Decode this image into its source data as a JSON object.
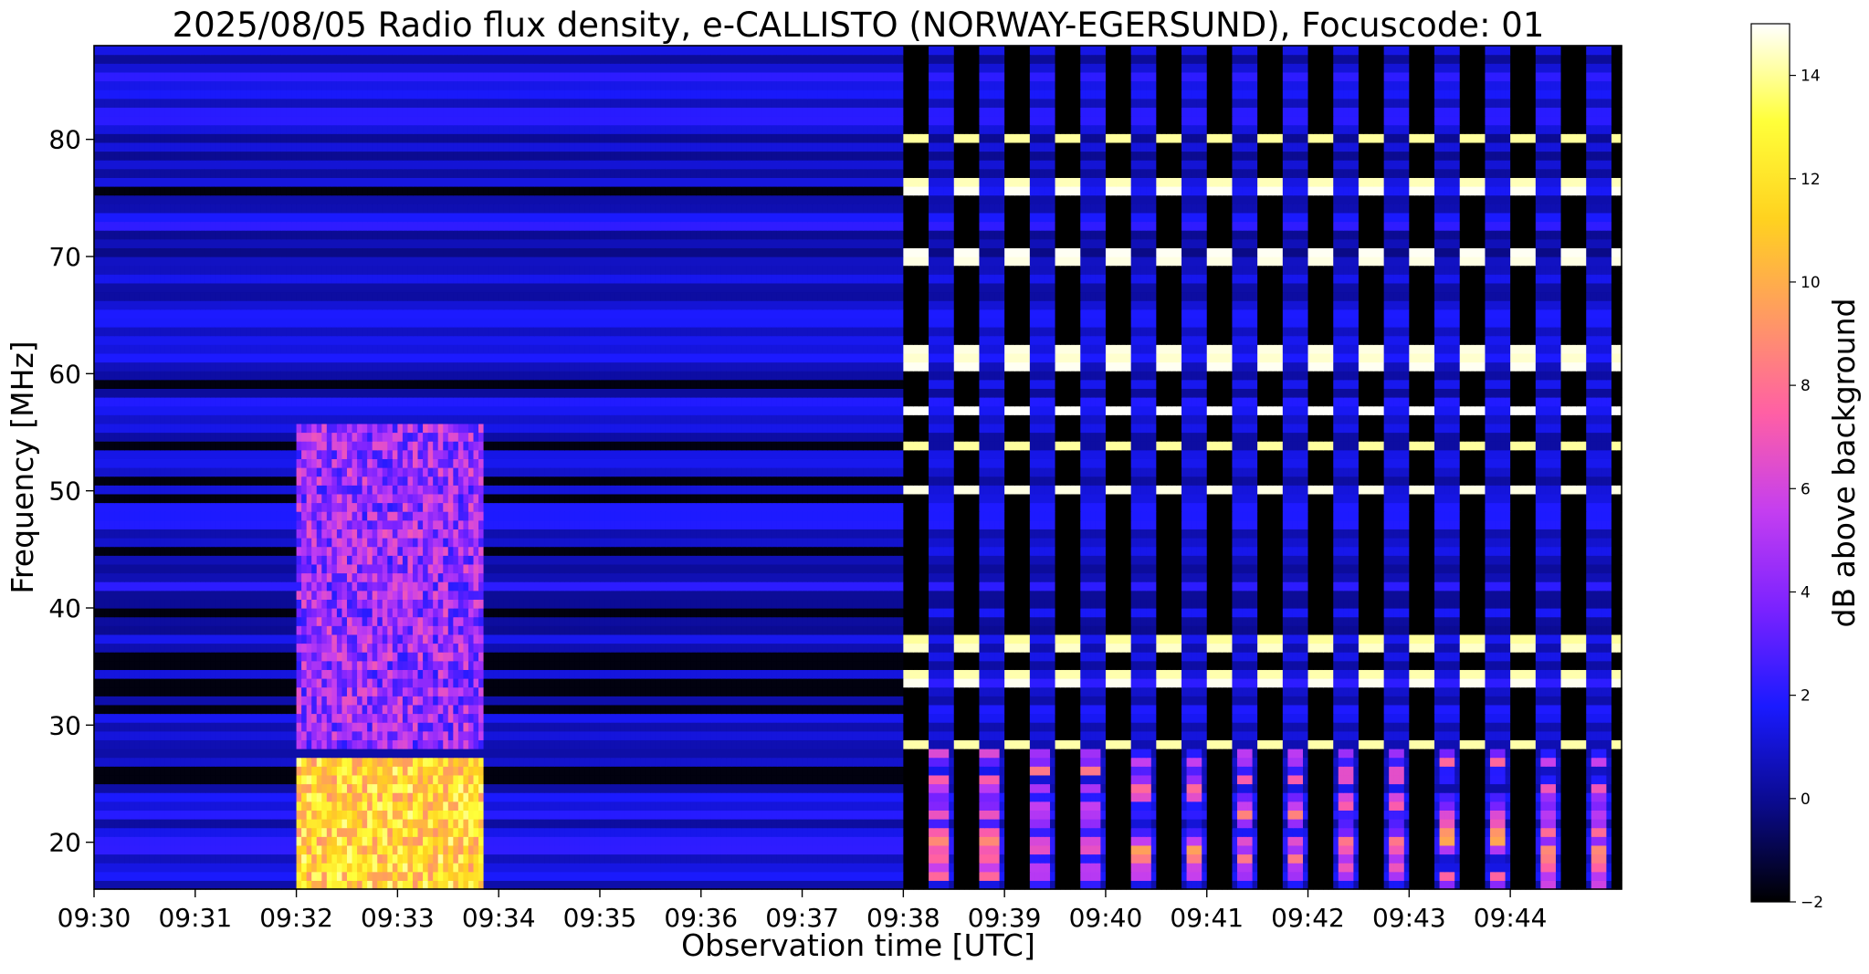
{
  "chart_data": {
    "type": "heatmap",
    "title": "2025/08/05  Radio flux density, e-CALLISTO (NORWAY-EGERSUND), Focuscode: 01",
    "xlabel": "Observation time [UTC]",
    "ylabel": "Frequency [MHz]",
    "xlim_minutes": [
      0,
      15.1
    ],
    "x_tick_labels": [
      "09:30",
      "09:31",
      "09:32",
      "09:33",
      "09:34",
      "09:35",
      "09:36",
      "09:37",
      "09:38",
      "09:39",
      "09:40",
      "09:41",
      "09:42",
      "09:43",
      "09:44"
    ],
    "x_tick_minutes": [
      0,
      1,
      2,
      3,
      4,
      5,
      6,
      7,
      8,
      9,
      10,
      11,
      12,
      13,
      14
    ],
    "ylim": [
      16,
      88
    ],
    "y_ticks": [
      20,
      30,
      40,
      50,
      60,
      70,
      80
    ],
    "colorbar": {
      "label": "dB above background",
      "range": [
        -2,
        15
      ],
      "ticks": [
        -2,
        0,
        2,
        4,
        6,
        8,
        10,
        12,
        14
      ],
      "colormap": "gnuplot2",
      "colormap_stops": [
        "#000000",
        "#0a0a8c",
        "#1a1aff",
        "#7a22ff",
        "#c43ef0",
        "#ff5fa5",
        "#ff9a62",
        "#ffd21f",
        "#ffff3a",
        "#ffffff"
      ]
    },
    "features": {
      "quiet_background_db": 1.0,
      "horizontal_band_frequencies_mhz": [
        80,
        76,
        70,
        62,
        61,
        57,
        54,
        50,
        37,
        34,
        28.5
      ],
      "enhanced_segments": [
        {
          "start_min": 2.0,
          "end_min": 3.85,
          "freq_low": 16,
          "freq_high": 27,
          "db": 12
        },
        {
          "start_min": 2.0,
          "end_min": 3.85,
          "freq_low": 28,
          "freq_high": 56,
          "db": 5
        }
      ],
      "striped_segment": {
        "start_min": 8.0,
        "end_min": 15.1,
        "period_min": 0.5,
        "on_bands_db": 14
      }
    }
  }
}
